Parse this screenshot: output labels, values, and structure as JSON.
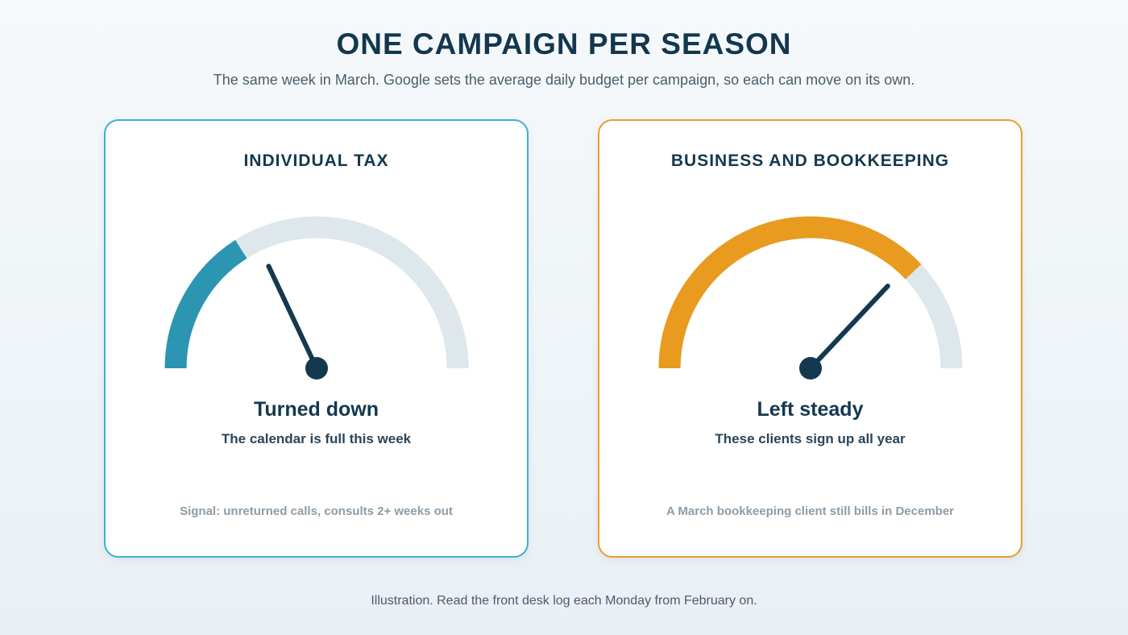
{
  "header": {
    "title": "ONE CAMPAIGN PER SEASON",
    "subtitle": "The same week in March. Google sets the average daily budget per campaign, so each can move on its own."
  },
  "cards": [
    {
      "title": "INDIVIDUAL TAX",
      "status": "Turned down",
      "reason": "The calendar is full this week",
      "note": "Signal: unreturned calls, consults 2+ weeks out",
      "accent": "#2b95b2",
      "border": "#3bb0d2",
      "level": 0.32,
      "needle": 0.36
    },
    {
      "title": "BUSINESS AND BOOKKEEPING",
      "status": "Left steady",
      "reason": "These clients sign up all year",
      "note": "A March bookkeeping client still bills in December",
      "accent": "#e89b1f",
      "border": "#e89e2a",
      "level": 0.76,
      "needle": 0.74
    }
  ],
  "colors": {
    "track": "#dde7ec",
    "needle": "#14384f"
  },
  "footer": {
    "text": "Illustration. Read the front desk log each Monday from February on."
  }
}
